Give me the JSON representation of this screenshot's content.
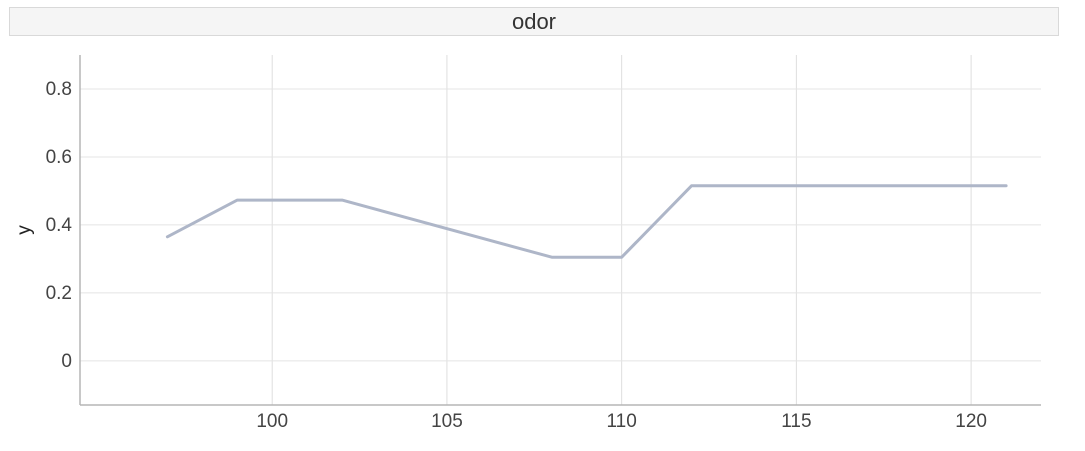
{
  "chart_data": {
    "type": "line",
    "title": "odor",
    "xlabel": "",
    "ylabel": "y",
    "xlim": [
      94.5,
      122
    ],
    "ylim": [
      -0.13,
      0.9
    ],
    "x_ticks": [
      100,
      105,
      110,
      115,
      120
    ],
    "y_ticks": [
      0,
      0.2,
      0.4,
      0.6,
      0.8
    ],
    "grid": true,
    "series": [
      {
        "color": "#aeb6c8",
        "x": [
          97,
          99,
          102,
          108,
          110,
          112,
          121
        ],
        "y": [
          0.365,
          0.473,
          0.473,
          0.305,
          0.305,
          0.515,
          0.515
        ]
      }
    ]
  }
}
